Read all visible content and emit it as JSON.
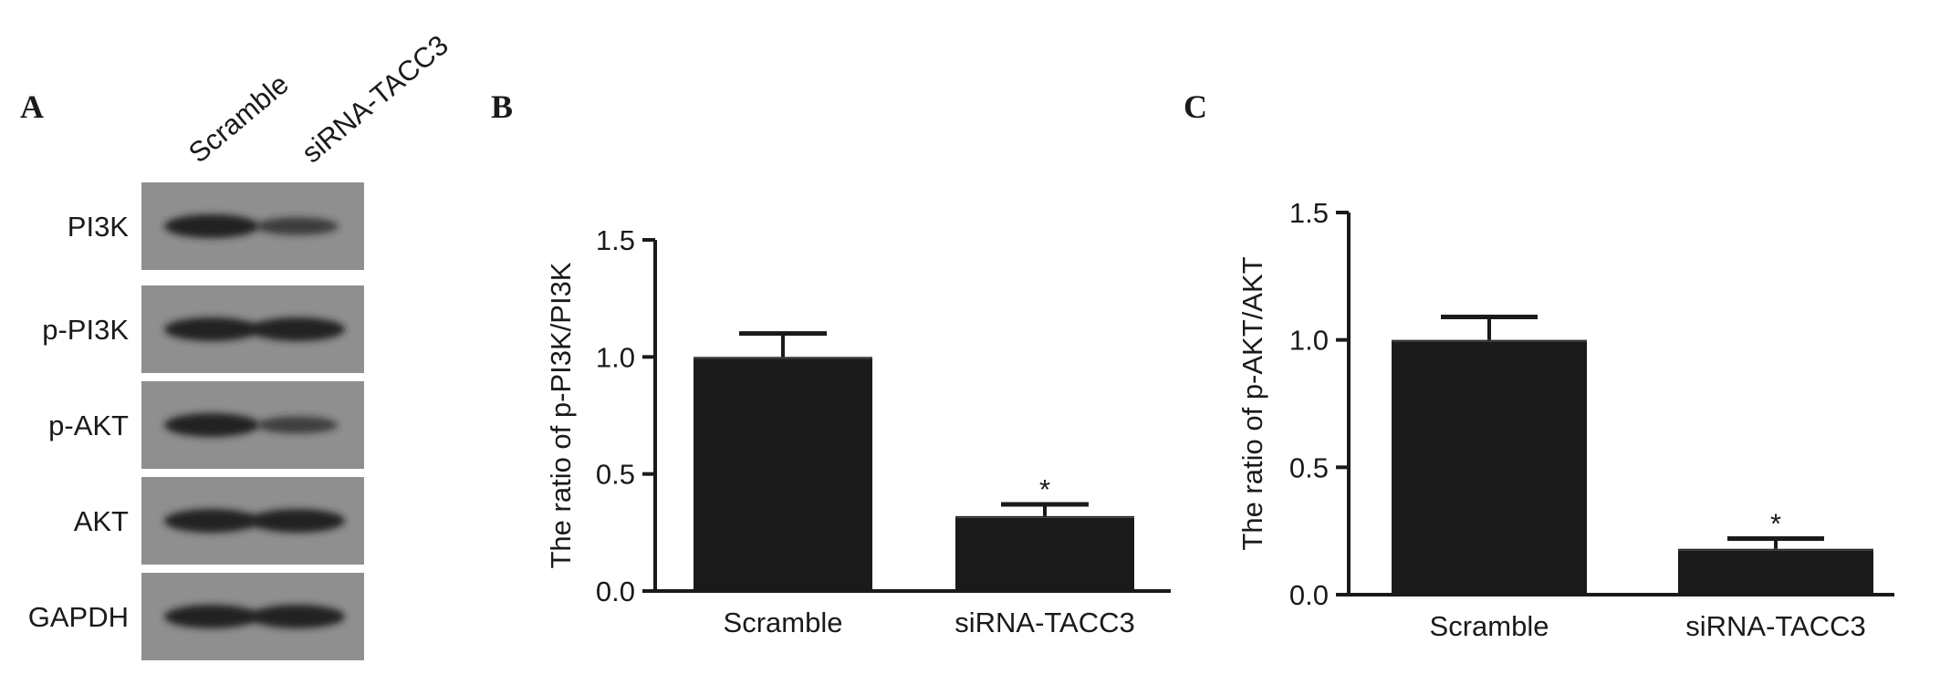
{
  "panels": {
    "a": "A",
    "b": "B",
    "c": "C"
  },
  "blot": {
    "lanes": [
      "Scramble",
      "siRNA-TACC3"
    ],
    "rows": [
      {
        "label": "PI3K",
        "intensity": [
          1.0,
          0.55
        ]
      },
      {
        "label": "p-PI3K",
        "intensity": [
          1.0,
          1.0
        ]
      },
      {
        "label": "p-AKT",
        "intensity": [
          1.0,
          0.5
        ]
      },
      {
        "label": "AKT",
        "intensity": [
          1.0,
          1.0
        ]
      },
      {
        "label": "GAPDH",
        "intensity": [
          1.0,
          1.0
        ]
      }
    ]
  },
  "chart_data": [
    {
      "type": "bar",
      "panel": "B",
      "categories": [
        "Scramble",
        "siRNA-TACC3"
      ],
      "values": [
        1.0,
        0.32
      ],
      "error": [
        0.1,
        0.05
      ],
      "annotations": [
        "",
        "*"
      ],
      "ylabel": "The ratio of p-PI3K/PI3K",
      "xlabel": "",
      "ylim": [
        0,
        1.5
      ],
      "yticks": [
        "0.0",
        "0.5",
        "1.0",
        "1.5"
      ],
      "bar_color": "#1a1a1a"
    },
    {
      "type": "bar",
      "panel": "C",
      "categories": [
        "Scramble",
        "siRNA-TACC3"
      ],
      "values": [
        1.0,
        0.18
      ],
      "error": [
        0.09,
        0.04
      ],
      "annotations": [
        "",
        "*"
      ],
      "ylabel": "The ratio of p-AKT/AKT",
      "xlabel": "",
      "ylim": [
        0,
        1.5
      ],
      "yticks": [
        "0.0",
        "0.5",
        "1.0",
        "1.5"
      ],
      "bar_color": "#1a1a1a"
    }
  ]
}
